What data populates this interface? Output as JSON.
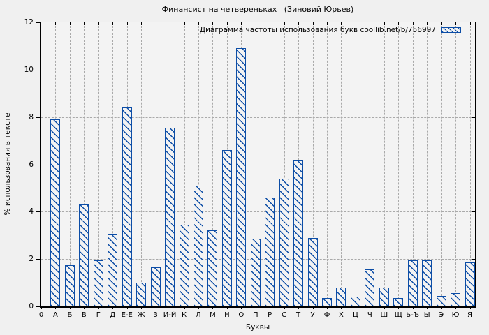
{
  "chart_data": {
    "type": "bar",
    "title": "Финансист на четвереньках   (Зиновий Юрьев)",
    "legend": "Диаграмма частоты использования букв coollib.net/b/756997",
    "legend_position": "top-right",
    "xlabel": "Буквы",
    "ylabel": "% использования в тексте",
    "ylim": [
      0,
      12
    ],
    "yticks": [
      0,
      2,
      4,
      6,
      8,
      10,
      12
    ],
    "x_origin_label": "0",
    "grid": true,
    "bar_color": "#0c4da6",
    "categories": [
      "А",
      "Б",
      "В",
      "Г",
      "Д",
      "Е-Ё",
      "Ж",
      "З",
      "И-Й",
      "К",
      "Л",
      "М",
      "Н",
      "О",
      "П",
      "Р",
      "С",
      "Т",
      "У",
      "Ф",
      "Х",
      "Ц",
      "Ч",
      "Ш",
      "Щ",
      "Ь-Ъ",
      "Ы",
      "Э",
      "Ю",
      "Я"
    ],
    "values": [
      7.9,
      1.75,
      4.3,
      1.95,
      3.05,
      8.4,
      1.0,
      1.65,
      7.55,
      3.45,
      5.1,
      3.2,
      6.6,
      10.9,
      2.85,
      4.6,
      5.4,
      6.2,
      2.9,
      0.35,
      0.8,
      0.4,
      1.55,
      0.8,
      0.35,
      1.95,
      1.95,
      0.45,
      0.55,
      1.85
    ]
  }
}
